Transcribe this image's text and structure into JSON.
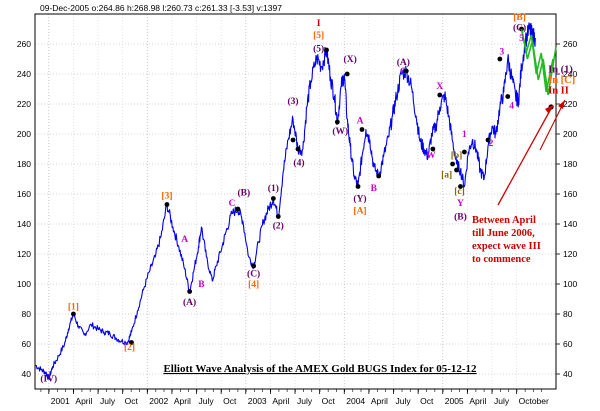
{
  "header": "09-Dec-2005 o:264.86 h:268.98 l:260.73 c:261.33 [-3.53] v:1397",
  "chart_data": {
    "type": "line",
    "title": "Elliott Wave Analysis of the AMEX Gold BUGS Index for 05-12-12",
    "ylim": [
      30,
      280
    ],
    "y_ticks": [
      40,
      60,
      80,
      100,
      120,
      140,
      160,
      180,
      200,
      220,
      240,
      260
    ],
    "y_ticks_right": [
      40,
      60,
      80,
      100,
      120,
      140,
      160,
      180,
      200,
      220,
      240,
      260
    ],
    "x_ticks": [
      "2001",
      "April",
      "July",
      "Oct",
      "2002",
      "April",
      "July",
      "Oct",
      "2003",
      "April",
      "July",
      "Oct",
      "2004",
      "April",
      "July",
      "Oct",
      "2005",
      "April",
      "July",
      "October"
    ],
    "grid": true,
    "series": [
      {
        "color": "#0000ee",
        "x": [
          2000.86,
          2000.92,
          2000.97,
          2001.0,
          2001.04,
          2001.1,
          2001.16,
          2001.2,
          2001.25,
          2001.3,
          2001.36,
          2001.43,
          2001.5,
          2001.56,
          2001.62,
          2001.68,
          2001.74,
          2001.8,
          2001.84,
          2001.9,
          2001.96,
          2002.02,
          2002.08,
          2002.14,
          2002.2,
          2002.26,
          2002.32,
          2002.38,
          2002.43,
          2002.47,
          2002.52,
          2002.55,
          2002.6,
          2002.66,
          2002.7,
          2002.76,
          2002.8,
          2002.86,
          2002.92,
          2002.97,
          2003.03,
          2003.08,
          2003.13,
          2003.18,
          2003.23,
          2003.28,
          2003.33,
          2003.38,
          2003.43,
          2003.48,
          2003.53,
          2003.58,
          2003.62,
          2003.66,
          2003.72,
          2003.77,
          2003.82,
          2003.86,
          2003.9,
          2003.93,
          2003.97,
          2004.0,
          2004.03,
          2004.06,
          2004.1,
          2004.14,
          2004.18,
          2004.22,
          2004.26,
          2004.3,
          2004.35,
          2004.4,
          2004.45,
          2004.49,
          2004.53,
          2004.58,
          2004.63,
          2004.68,
          2004.73,
          2004.77,
          2004.81,
          2004.85,
          2004.89,
          2004.93,
          2004.97,
          2005.02,
          2005.06,
          2005.1,
          2005.14,
          2005.18,
          2005.22,
          2005.26,
          2005.3,
          2005.34,
          2005.38,
          2005.42,
          2005.46,
          2005.5,
          2005.54,
          2005.58,
          2005.62,
          2005.66,
          2005.7,
          2005.74,
          2005.77,
          2005.8,
          2005.84,
          2005.88,
          2005.91,
          2005.94
        ],
        "values": [
          46,
          43,
          41,
          37,
          45,
          52,
          60,
          70,
          80,
          72,
          66,
          73,
          70,
          68,
          67,
          64,
          62,
          61,
          68,
          82,
          96,
          108,
          118,
          132,
          153,
          138,
          125,
          110,
          95,
          108,
          125,
          138,
          118,
          102,
          112,
          125,
          135,
          147,
          150,
          142,
          118,
          112,
          128,
          142,
          150,
          157,
          145,
          175,
          196,
          210,
          190,
          190,
          218,
          235,
          251,
          245,
          256,
          238,
          225,
          208,
          232,
          240,
          210,
          192,
          172,
          165,
          185,
          203,
          196,
          178,
          172,
          185,
          198,
          212,
          225,
          240,
          242,
          232,
          212,
          195,
          190,
          185,
          200,
          205,
          218,
          226,
          212,
          195,
          180,
          176,
          165,
          188,
          196,
          190,
          176,
          170,
          192,
          205,
          200,
          218,
          228,
          250,
          238,
          225,
          222,
          245,
          262,
          270,
          266,
          264
        ]
      }
    ],
    "wave_labels": [
      {
        "text": "(IV)",
        "x": 2001.0,
        "y": 35,
        "color": "#660066"
      },
      {
        "text": "[1]",
        "x": 2001.25,
        "y": 83,
        "color": "#ff6600"
      },
      {
        "text": "[2]",
        "x": 2001.82,
        "y": 56,
        "color": "#ff6600"
      },
      {
        "text": "[3]",
        "x": 2002.2,
        "y": 157,
        "color": "#ff6600"
      },
      {
        "text": "A",
        "x": 2002.38,
        "y": 128,
        "color": "#cc00cc"
      },
      {
        "text": "(A)",
        "x": 2002.43,
        "y": 86,
        "color": "#660066"
      },
      {
        "text": "B",
        "x": 2002.55,
        "y": 98,
        "color": "#cc00cc"
      },
      {
        "text": "C",
        "x": 2002.86,
        "y": 152,
        "color": "#cc00cc"
      },
      {
        "text": "(B)",
        "x": 2002.98,
        "y": 159,
        "color": "#660066"
      },
      {
        "text": "(C)",
        "x": 2003.08,
        "y": 105,
        "color": "#660066"
      },
      {
        "text": "[4]",
        "x": 2003.08,
        "y": 98,
        "color": "#ff6600"
      },
      {
        "text": "(1)",
        "x": 2003.28,
        "y": 162,
        "color": "#660066"
      },
      {
        "text": "(2)",
        "x": 2003.33,
        "y": 137,
        "color": "#660066"
      },
      {
        "text": "(3)",
        "x": 2003.48,
        "y": 220,
        "color": "#660066"
      },
      {
        "text": "(4)",
        "x": 2003.54,
        "y": 179,
        "color": "#660066"
      },
      {
        "text": "I",
        "x": 2003.74,
        "y": 272,
        "color": "#cc0000"
      },
      {
        "text": "[5]",
        "x": 2003.74,
        "y": 264,
        "color": "#ff6600"
      },
      {
        "text": "(5)",
        "x": 2003.74,
        "y": 255,
        "color": "#660066"
      },
      {
        "text": "(W)",
        "x": 2003.96,
        "y": 200,
        "color": "#660066"
      },
      {
        "text": "(X)",
        "x": 2004.06,
        "y": 248,
        "color": "#660066"
      },
      {
        "text": "A",
        "x": 2004.16,
        "y": 207,
        "color": "#cc00cc"
      },
      {
        "text": "(Y)",
        "x": 2004.16,
        "y": 155,
        "color": "#660066"
      },
      {
        "text": "[A]",
        "x": 2004.16,
        "y": 147,
        "color": "#ff6600"
      },
      {
        "text": "B",
        "x": 2004.3,
        "y": 162,
        "color": "#cc00cc"
      },
      {
        "text": "(A)",
        "x": 2004.6,
        "y": 246,
        "color": "#660066"
      },
      {
        "text": "C",
        "x": 2004.6,
        "y": 240,
        "color": "#cc00cc"
      },
      {
        "text": "W",
        "x": 2004.88,
        "y": 184,
        "color": "#cc00cc"
      },
      {
        "text": "X",
        "x": 2004.97,
        "y": 230,
        "color": "#cc00cc"
      },
      {
        "text": "[a]",
        "x": 2005.04,
        "y": 171,
        "color": "#886600"
      },
      {
        "text": "[b]",
        "x": 2005.14,
        "y": 184,
        "color": "#886600"
      },
      {
        "text": "1",
        "x": 2005.22,
        "y": 198,
        "color": "#cc00cc"
      },
      {
        "text": "[c]",
        "x": 2005.17,
        "y": 160,
        "color": "#886600"
      },
      {
        "text": "Y",
        "x": 2005.18,
        "y": 152,
        "color": "#cc00cc"
      },
      {
        "text": "(B)",
        "x": 2005.18,
        "y": 143,
        "color": "#660066"
      },
      {
        "text": "2",
        "x": 2005.49,
        "y": 192,
        "color": "#cc00cc"
      },
      {
        "text": "3",
        "x": 2005.6,
        "y": 253,
        "color": "#cc00cc"
      },
      {
        "text": "4",
        "x": 2005.7,
        "y": 217,
        "color": "#cc00cc"
      },
      {
        "text": "[B]",
        "x": 2005.78,
        "y": 276,
        "color": "#ff6600"
      },
      {
        "text": "(C)",
        "x": 2005.78,
        "y": 269,
        "color": "#660066"
      },
      {
        "text": "5",
        "x": 2005.8,
        "y": 262,
        "color": "#cc00cc"
      }
    ],
    "forecast_labels": [
      {
        "text": "In (1)",
        "x": 2006.07,
        "y": 241,
        "color": "#660066"
      },
      {
        "text": "In [C]",
        "x": 2006.07,
        "y": 234,
        "color": "#ff6600"
      },
      {
        "text": "In II",
        "x": 2006.07,
        "y": 227,
        "color": "#cc0000"
      }
    ],
    "annotation": [
      "Between April",
      "till June 2006,",
      "expect wave III",
      "to commence"
    ]
  }
}
